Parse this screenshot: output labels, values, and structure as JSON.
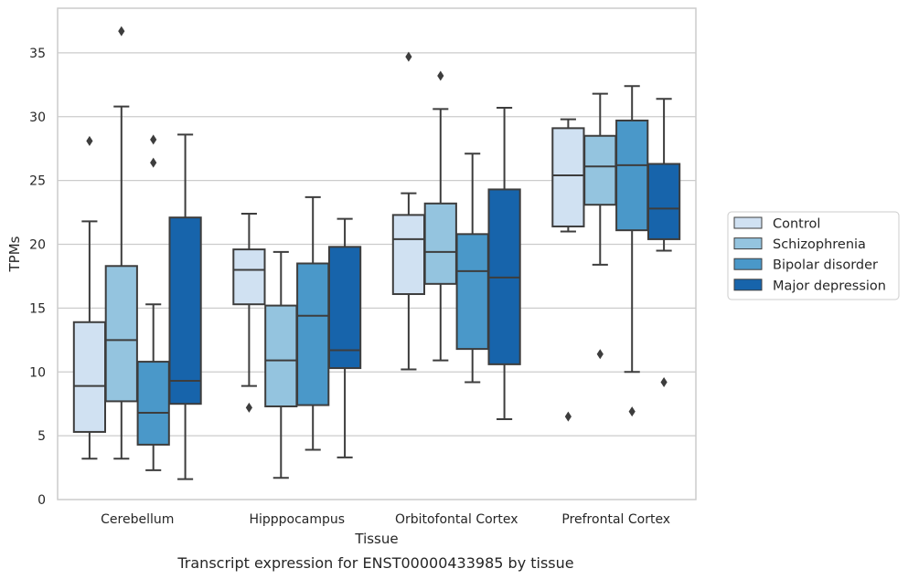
{
  "chart_data": {
    "type": "box",
    "title": "",
    "caption": "Transcript expression for ENST00000433985 by tissue",
    "xlabel": "Tissue",
    "ylabel": "TPMs",
    "ylim": [
      0,
      38.5
    ],
    "yticks": [
      0,
      5,
      10,
      15,
      20,
      25,
      30,
      35
    ],
    "grid": "horizontal",
    "legend_position": "right",
    "categories": [
      "Cerebellum",
      "Hipppocampus",
      "Orbitofontal Cortex",
      "Prefrontal Cortex"
    ],
    "series": [
      {
        "name": "Control",
        "color": "#d0e1f2",
        "boxes": [
          {
            "whislo": 3.2,
            "q1": 5.3,
            "med": 8.9,
            "q3": 13.9,
            "whishi": 21.8,
            "fliers": [
              28.1
            ]
          },
          {
            "whislo": 8.9,
            "q1": 15.3,
            "med": 18.0,
            "q3": 19.6,
            "whishi": 22.4,
            "fliers": [
              7.2
            ]
          },
          {
            "whislo": 10.2,
            "q1": 16.1,
            "med": 20.4,
            "q3": 22.3,
            "whishi": 24.0,
            "fliers": [
              34.7
            ]
          },
          {
            "whislo": 21.0,
            "q1": 21.4,
            "med": 25.4,
            "q3": 29.1,
            "whishi": 29.8,
            "fliers": [
              6.5
            ]
          }
        ]
      },
      {
        "name": "Schizophrenia",
        "color": "#94c4df",
        "boxes": [
          {
            "whislo": 3.2,
            "q1": 7.7,
            "med": 12.5,
            "q3": 18.3,
            "whishi": 30.8,
            "fliers": [
              36.7
            ]
          },
          {
            "whislo": 1.7,
            "q1": 7.3,
            "med": 10.9,
            "q3": 15.2,
            "whishi": 19.4,
            "fliers": []
          },
          {
            "whislo": 10.9,
            "q1": 16.9,
            "med": 19.4,
            "q3": 23.2,
            "whishi": 30.6,
            "fliers": [
              33.2
            ]
          },
          {
            "whislo": 18.4,
            "q1": 23.1,
            "med": 26.1,
            "q3": 28.5,
            "whishi": 31.8,
            "fliers": [
              11.4
            ]
          }
        ]
      },
      {
        "name": "Bipolar disorder",
        "color": "#4a98c9",
        "boxes": [
          {
            "whislo": 2.3,
            "q1": 4.3,
            "med": 6.8,
            "q3": 10.8,
            "whishi": 15.3,
            "fliers": [
              28.2,
              26.4
            ]
          },
          {
            "whislo": 3.9,
            "q1": 7.4,
            "med": 14.4,
            "q3": 18.5,
            "whishi": 23.7,
            "fliers": []
          },
          {
            "whislo": 9.2,
            "q1": 11.8,
            "med": 17.9,
            "q3": 20.8,
            "whishi": 27.1,
            "fliers": []
          },
          {
            "whislo": 10.0,
            "q1": 21.1,
            "med": 26.2,
            "q3": 29.7,
            "whishi": 32.4,
            "fliers": [
              6.9
            ]
          }
        ]
      },
      {
        "name": "Major depression",
        "color": "#1764ab",
        "boxes": [
          {
            "whislo": 1.6,
            "q1": 7.5,
            "med": 9.3,
            "q3": 22.1,
            "whishi": 28.6,
            "fliers": []
          },
          {
            "whislo": 3.3,
            "q1": 10.3,
            "med": 11.7,
            "q3": 19.8,
            "whishi": 22.0,
            "fliers": []
          },
          {
            "whislo": 6.3,
            "q1": 10.6,
            "med": 17.4,
            "q3": 24.3,
            "whishi": 30.7,
            "fliers": []
          },
          {
            "whislo": 19.5,
            "q1": 20.4,
            "med": 22.8,
            "q3": 26.3,
            "whishi": 31.4,
            "fliers": [
              9.2
            ]
          }
        ]
      }
    ]
  }
}
